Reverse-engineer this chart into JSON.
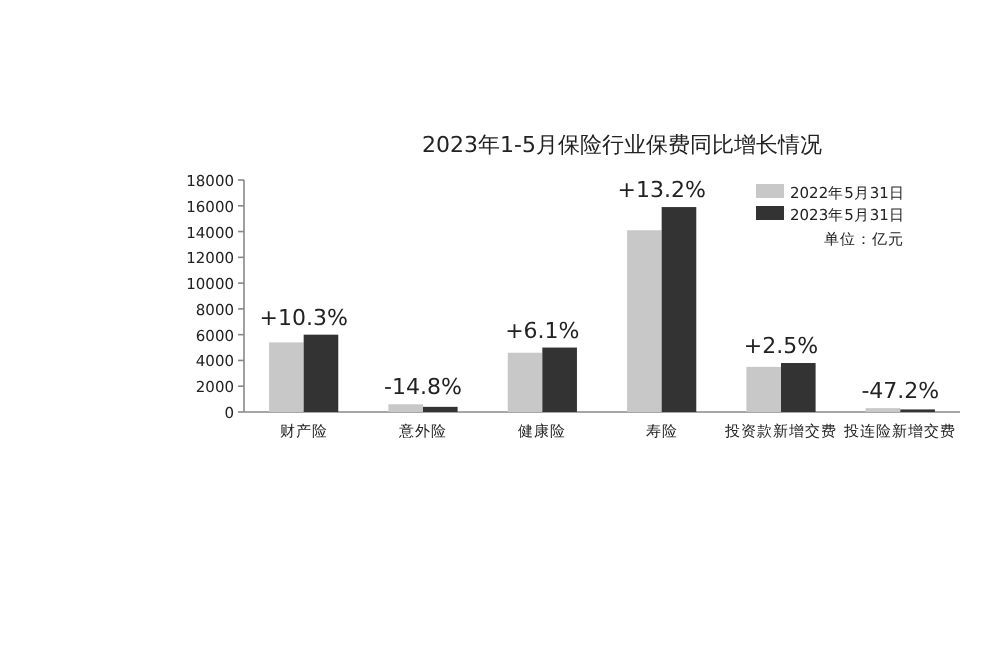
{
  "chart_data": {
    "type": "bar",
    "title": "2023年1-5月保险行业保费同比增长情况",
    "categories": [
      "财产险",
      "意外险",
      "健康险",
      "寿险",
      "投资款新增交费",
      "投连险新增交费"
    ],
    "series": [
      {
        "name": "2022年5月31日",
        "color": "#c8c8c8",
        "values": [
          5400,
          600,
          4600,
          14100,
          3500,
          300
        ]
      },
      {
        "name": "2023年5月31日",
        "color": "#333333",
        "values": [
          6000,
          400,
          5000,
          15900,
          3800,
          200
        ]
      }
    ],
    "ylim": [
      0,
      18000
    ],
    "yticks": [
      0,
      2000,
      4000,
      6000,
      8000,
      10000,
      12000,
      14000,
      16000,
      18000
    ],
    "legend": "top right",
    "grid": false,
    "annotations": [
      {
        "text": "+10.3%",
        "x": "财产险",
        "y": 6000
      },
      {
        "text": "-14.8%",
        "x": "意外险",
        "y": 600
      },
      {
        "text": "+6.1%",
        "x": "健康险",
        "y": 5000
      },
      {
        "text": "+13.2%",
        "x": "寿险",
        "y": 15900
      },
      {
        "text": "+2.5%",
        "x": "投资款新增交费",
        "y": 3800
      },
      {
        "text": "-47.2%",
        "x": "投连险新增交费",
        "y": 300
      },
      "单位：亿元"
    ]
  }
}
